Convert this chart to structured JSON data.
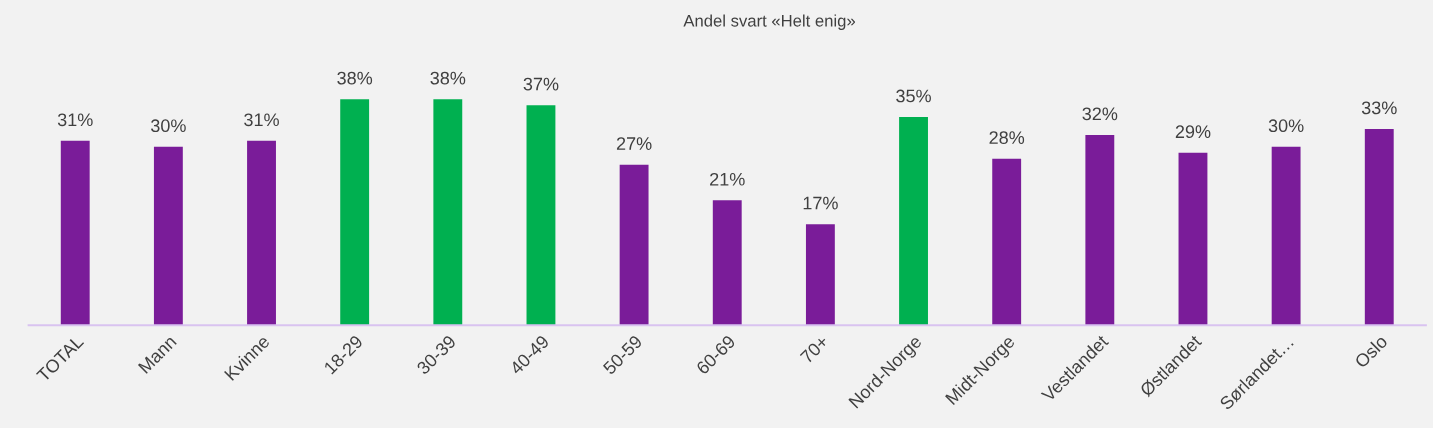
{
  "chart_data": {
    "type": "bar",
    "title": "Andel svart «Helt enig»",
    "categories": [
      "TOTAL",
      "Mann",
      "Kvinne",
      "18-29",
      "30-39",
      "40-49",
      "50-59",
      "60-69",
      "70+",
      "Nord-Norge",
      "Midt-Norge",
      "Vestlandet",
      "Østlandet",
      "Sørlandet…",
      "Oslo"
    ],
    "values": [
      31,
      30,
      31,
      38,
      38,
      37,
      27,
      21,
      17,
      35,
      28,
      32,
      29,
      30,
      33
    ],
    "value_labels": [
      "31%",
      "30%",
      "31%",
      "38%",
      "38%",
      "37%",
      "27%",
      "21%",
      "17%",
      "35%",
      "28%",
      "32%",
      "29%",
      "30%",
      "33%"
    ],
    "colors": [
      "#7a1c99",
      "#7a1c99",
      "#7a1c99",
      "#00b050",
      "#00b050",
      "#00b050",
      "#7a1c99",
      "#7a1c99",
      "#7a1c99",
      "#00b050",
      "#7a1c99",
      "#7a1c99",
      "#7a1c99",
      "#7a1c99",
      "#7a1c99"
    ],
    "grid": false,
    "legend": false
  }
}
